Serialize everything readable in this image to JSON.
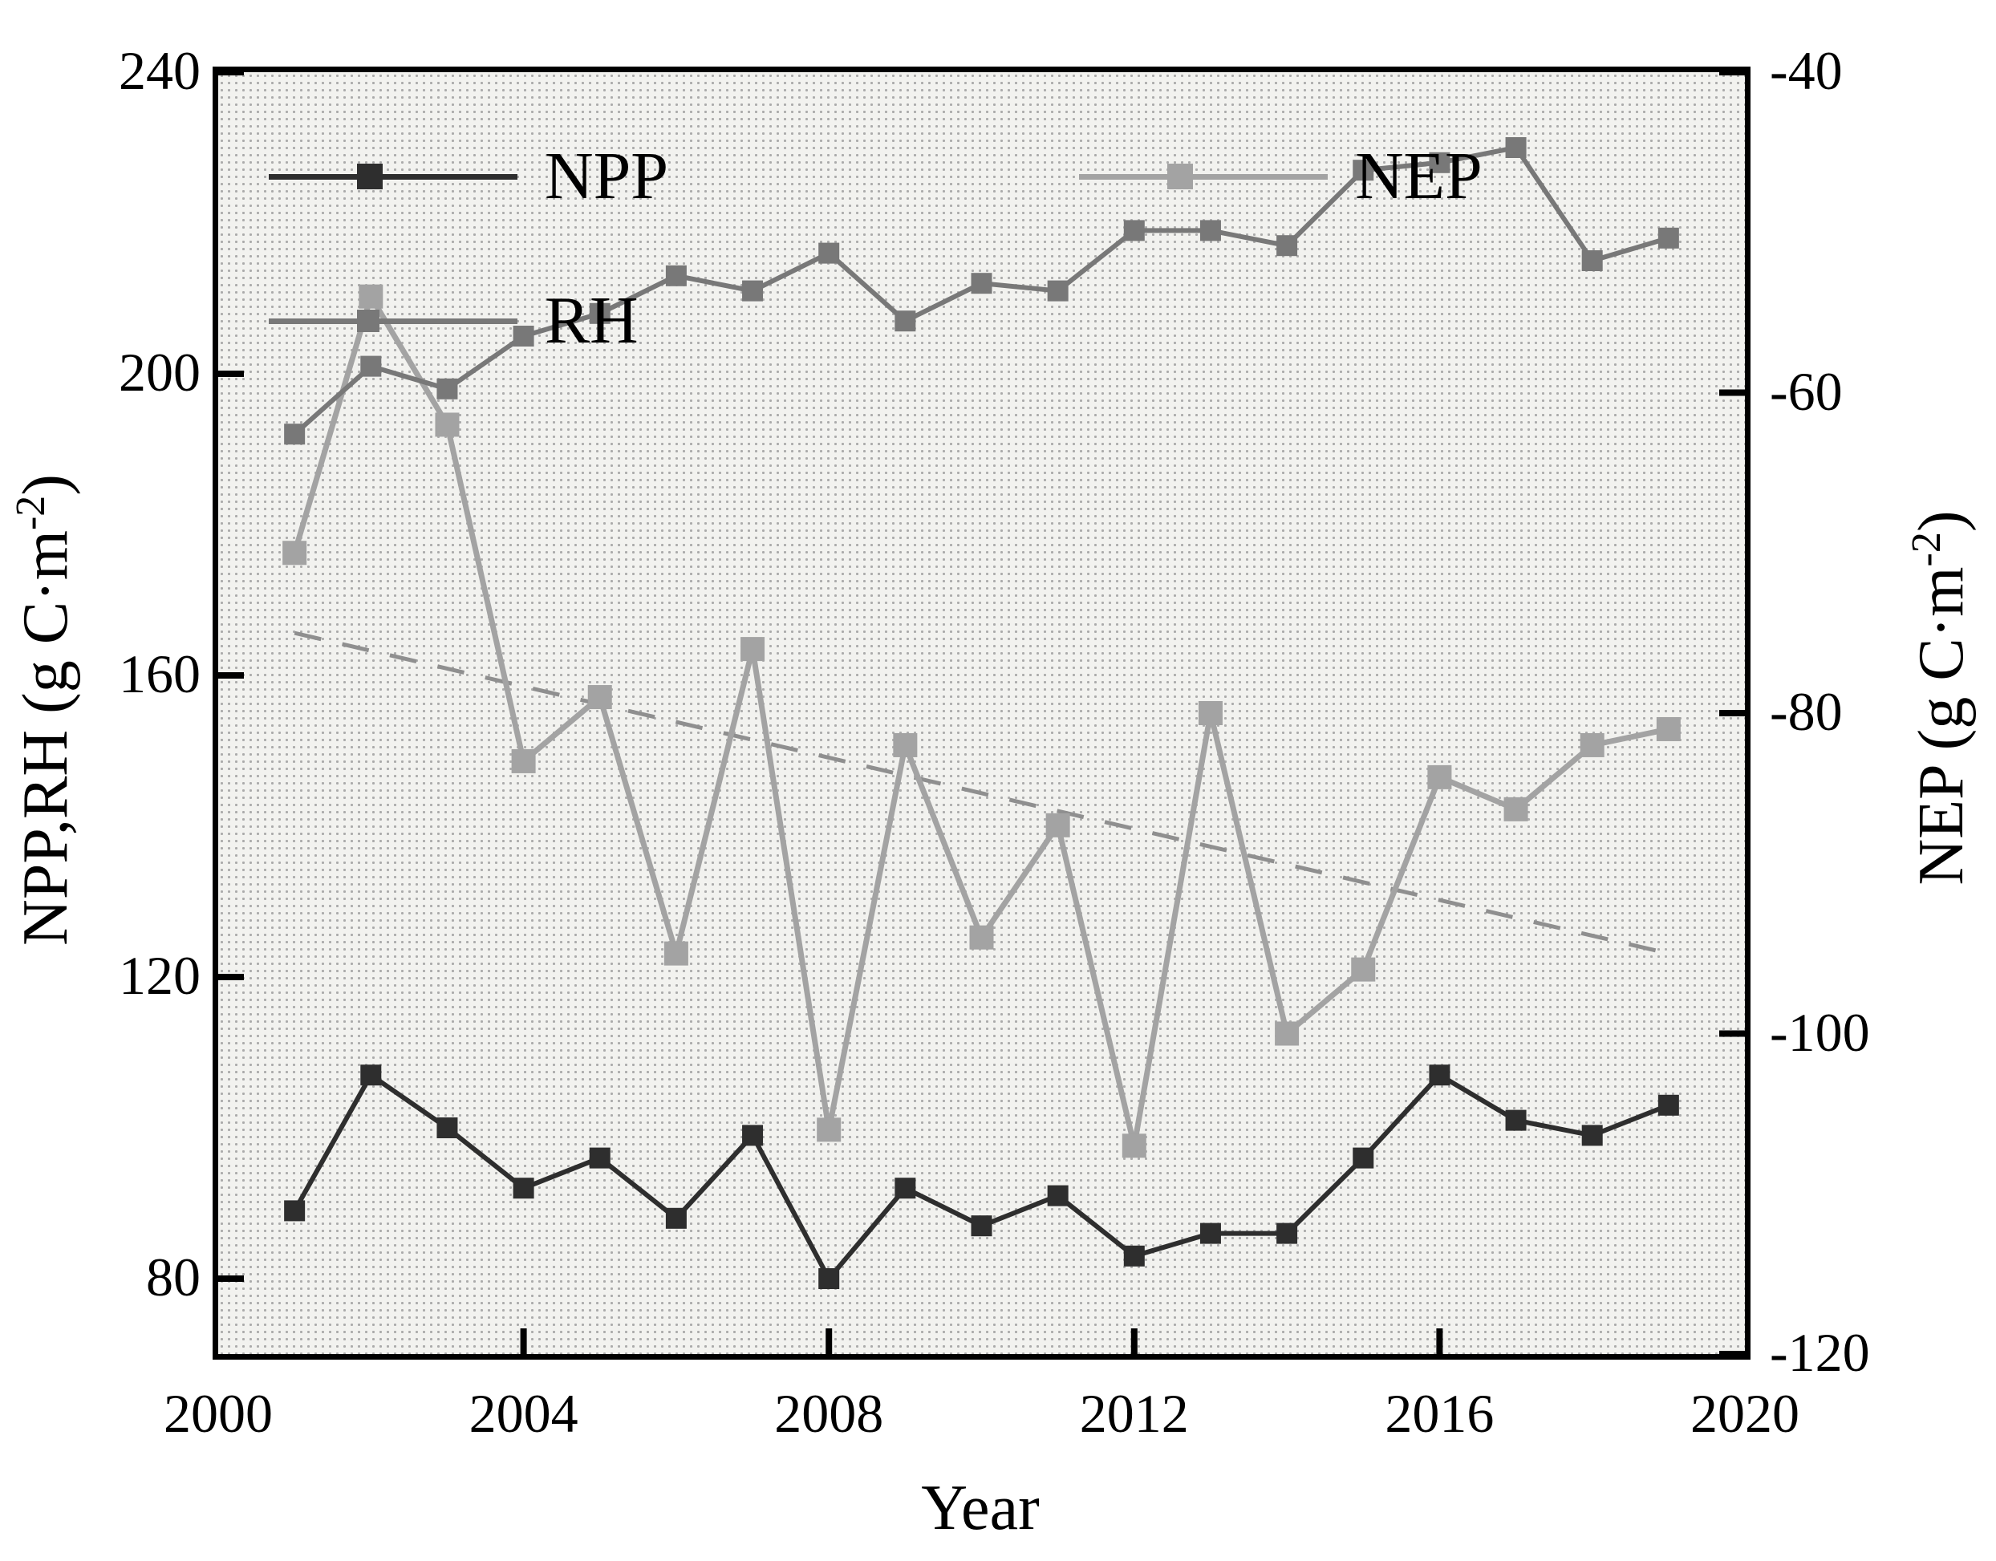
{
  "labels": {
    "xlabel": "Year",
    "y_left_title_prefix": "NPP,RH (g C·m",
    "y_left_title_sup": "-2",
    "y_left_title_suffix": ")",
    "y_right_title_prefix": "NEP (g C·m",
    "y_right_title_sup": "-2",
    "y_right_title_suffix": ")"
  },
  "legend": {
    "npp": "NPP",
    "nep": "NEP",
    "rh": "RH"
  },
  "colors": {
    "npp": "#2e2e2e",
    "rh": "#787878",
    "nep": "#a3a3a3",
    "trend": "#8f8f8f",
    "axis": "#000000",
    "plot_background": "#f2f2ef"
  },
  "chart_data": {
    "type": "line",
    "title": "",
    "xlabel": "Year",
    "ylabel_left": "NPP,RH (g C·m⁻²)",
    "ylabel_right": "NEP (g C·m⁻²)",
    "grid": false,
    "legend_position": "top-left-inside",
    "x": [
      2001,
      2002,
      2003,
      2004,
      2005,
      2006,
      2007,
      2008,
      2009,
      2010,
      2011,
      2012,
      2013,
      2014,
      2015,
      2016,
      2017,
      2018,
      2019
    ],
    "series": [
      {
        "name": "NPP",
        "axis": "left",
        "color": "#2e2e2e",
        "line_width": 6,
        "marker": "square",
        "marker_size": 26,
        "values": [
          89,
          107,
          100,
          92,
          96,
          88,
          99,
          80,
          92,
          87,
          91,
          83,
          86,
          86,
          96,
          107,
          101,
          99,
          103
        ]
      },
      {
        "name": "RH",
        "axis": "left",
        "color": "#787878",
        "line_width": 6,
        "marker": "square",
        "marker_size": 26,
        "values": [
          192,
          201,
          198,
          205,
          208,
          213,
          211,
          216,
          207,
          212,
          211,
          219,
          219,
          217,
          227,
          228,
          230,
          215,
          218
        ]
      },
      {
        "name": "NEP",
        "axis": "right",
        "color": "#a3a3a3",
        "line_width": 7,
        "marker": "square",
        "marker_size": 30,
        "values": [
          -70,
          -54,
          -62,
          -83,
          -79,
          -95,
          -76,
          -106,
          -82,
          -94,
          -87,
          -107,
          -80,
          -100,
          -96,
          -84,
          -86,
          -82,
          -81
        ]
      }
    ],
    "trend_line": {
      "applies_to": "NEP",
      "axis": "right",
      "style": "dashed",
      "color": "#8f8f8f",
      "from": {
        "x": 2001,
        "y": -75
      },
      "to": {
        "x": 2019,
        "y": -95
      }
    },
    "axes": {
      "x": {
        "min": 2000,
        "max": 2020,
        "ticks": [
          2000,
          2004,
          2008,
          2012,
          2016,
          2020
        ]
      },
      "y_left": {
        "label": "NPP,RH (g C·m⁻²)",
        "top_value": 240,
        "bottom_value": 70,
        "ticks": [
          240,
          200,
          160,
          120,
          80
        ]
      },
      "y_right": {
        "label": "NEP (g C·m⁻²)",
        "top_value": -40,
        "bottom_value": -120,
        "ticks": [
          -40,
          -60,
          -80,
          -100,
          -120
        ]
      }
    }
  }
}
